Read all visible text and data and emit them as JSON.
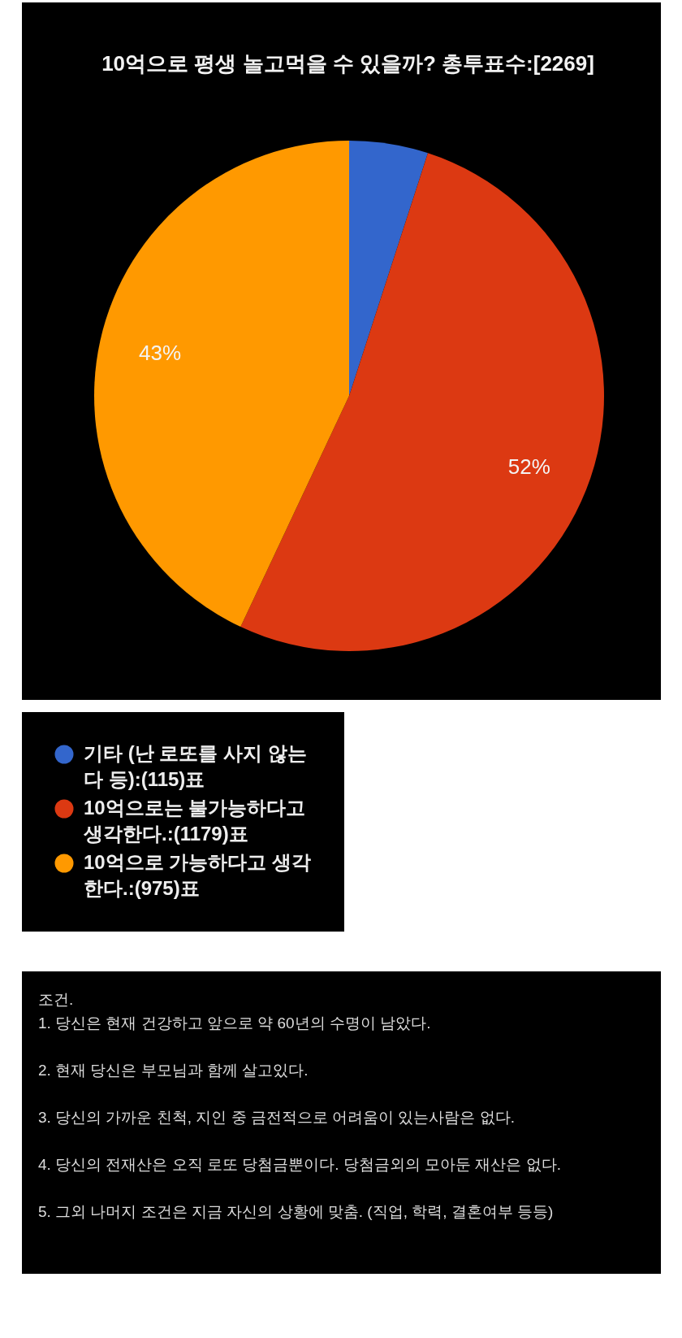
{
  "chart_data": {
    "type": "pie",
    "title": "10억으로 평생 놀고먹을 수 있을까? 총투표수:[2269]",
    "categories": [
      "기타 (난 로또를 사지 않는다 등):(115)표",
      "10억으로는 불가능하다고 생각한다.:(1179)표",
      "10억으로 가능하다고 생각한다.:(975)표"
    ],
    "values": [
      5,
      52,
      43
    ],
    "colors": [
      "#3366cc",
      "#dc3912",
      "#ff9900"
    ],
    "value_labels": [
      null,
      "52%",
      "43%"
    ],
    "legend": "bottom",
    "annotations": [
      "조건.",
      "1. 당신은 현재 건강하고 앞으로 약 60년의 수명이 남았다.",
      "2. 현재 당신은 부모님과 함께 살고있다.",
      "3. 당신의 가까운 친척, 지인 중 금전적으로 어려움이 있는사람은 없다.",
      "4. 당신의 전재산은 오직 로또 당첨금뿐이다. 당첨금외의 모아둔 재산은 없다.",
      "5. 그외 나머지 조건은 지금 자신의 상황에 맞춤. (직업, 학력, 결혼여부 등등)"
    ]
  }
}
